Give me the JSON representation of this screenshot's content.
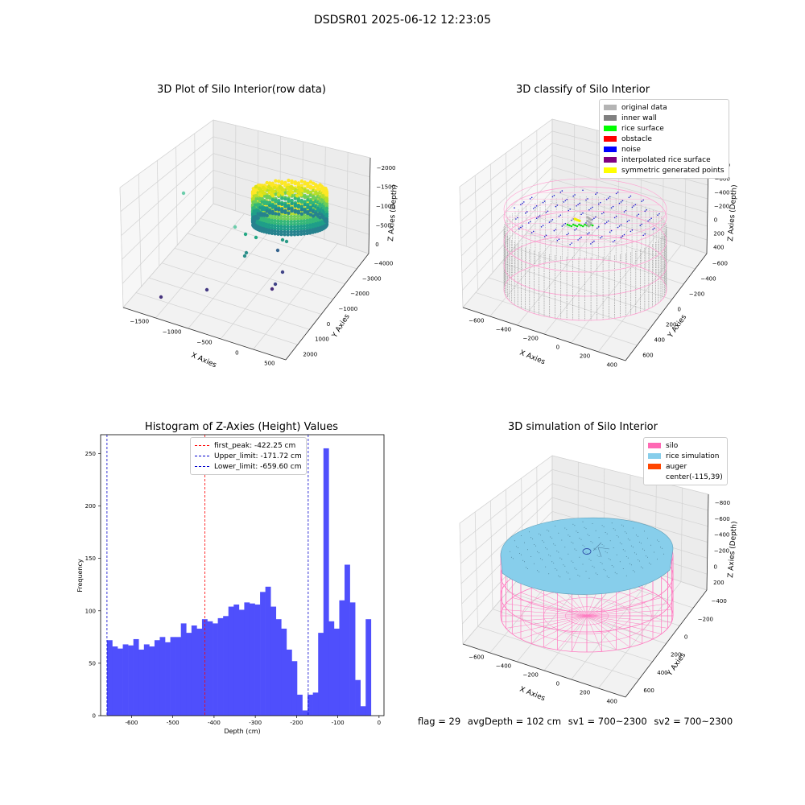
{
  "suptitle": "DSDSR01 2025-06-12 12:23:05",
  "panel1": {
    "title": "3D Plot of Silo Interior(row data)",
    "xlabel": "X Axies",
    "ylabel": "Y Axies",
    "zlabel": "Z Axies (Depth)",
    "xticks": [
      "−1500",
      "−1000",
      "−500",
      "0",
      "500"
    ],
    "yticks": [
      "2000",
      "1000",
      "0",
      "−1000",
      "−2000",
      "−3000",
      "−4000"
    ],
    "zticks": [
      "0",
      "−500",
      "−1000",
      "−1500",
      "−2000"
    ]
  },
  "panel2": {
    "title": "3D classify of Silo Interior",
    "xlabel": "X Axies",
    "ylabel": "Y Axies",
    "zlabel": "Z Axies (Depth)",
    "xticks": [
      "−600",
      "−400",
      "−200",
      "0",
      "200",
      "400"
    ],
    "yticks": [
      "600",
      "400",
      "200",
      "0",
      "−200",
      "−400",
      "−600"
    ],
    "zticks": [
      "400",
      "200",
      "0",
      "−200",
      "−400",
      "−600",
      "−800"
    ],
    "legend": [
      {
        "label": "original data",
        "color": "#b4b4b4"
      },
      {
        "label": "inner wall",
        "color": "#808080"
      },
      {
        "label": "rice surface",
        "color": "#00ff00"
      },
      {
        "label": "obstacle",
        "color": "#ff0000"
      },
      {
        "label": "noise",
        "color": "#0000ff"
      },
      {
        "label": "interpolated rice surface",
        "color": "#800080"
      },
      {
        "label": "symmetric generated points",
        "color": "#ffff00"
      }
    ]
  },
  "panel3": {
    "title": "Histogram of Z-Axies (Height) Values",
    "legend": [
      {
        "label": "first_peak: -422.25 cm",
        "color": "#ff0000"
      },
      {
        "label": "Upper_limit: -171.72 cm",
        "color": "#0000cc"
      },
      {
        "label": "Lower_limit: -659.60 cm",
        "color": "#0000cc"
      }
    ]
  },
  "panel4": {
    "title": "3D simulation of Silo Interior",
    "xlabel": "X Axies",
    "ylabel": "Y Axies",
    "zlabel": "Z Axies (Depth)",
    "xticks": [
      "−600",
      "−400",
      "−200",
      "0",
      "200",
      "400"
    ],
    "yticks": [
      "600",
      "400",
      "200",
      "0",
      "−200",
      "−400"
    ],
    "zticks": [
      "200",
      "0",
      "−200",
      "−400",
      "−600",
      "−800"
    ],
    "legend": [
      {
        "label": "silo",
        "color": "#ff69b4"
      },
      {
        "label": "rice simulation",
        "color": "#87ceeb"
      },
      {
        "label": "auger",
        "color": "#ff4500"
      },
      {
        "label": "center(-115,39)",
        "color": ""
      }
    ]
  },
  "status": {
    "flag": "flag = 29",
    "avg": "avgDepth = 102 cm",
    "sv1": "sv1 = 700~2300",
    "sv2": "sv2 = 700~2300"
  },
  "chart_data": {
    "type": "bar",
    "title": "Histogram of Z-Axies (Height) Values",
    "xlabel": "Depth (cm)",
    "ylabel": "Frequency",
    "xlim": [
      -675,
      12
    ],
    "ylim": [
      0,
      268
    ],
    "xticks": [
      -600,
      -500,
      -400,
      -300,
      -200,
      -100,
      0
    ],
    "yticks": [
      0,
      50,
      100,
      150,
      200,
      250
    ],
    "bin_start": -659.6,
    "bin_width": 12.8,
    "values": [
      72,
      66,
      64,
      68,
      67,
      73,
      63,
      68,
      66,
      72,
      75,
      70,
      75,
      75,
      88,
      79,
      86,
      83,
      92,
      90,
      88,
      93,
      95,
      104,
      106,
      101,
      108,
      107,
      106,
      118,
      123,
      104,
      92,
      83,
      63,
      52,
      20,
      5,
      20,
      22,
      79,
      255,
      90,
      83,
      110,
      144,
      108,
      34,
      9,
      92
    ],
    "vlines": [
      {
        "x": -422.25,
        "color": "#ff0000"
      },
      {
        "x": -171.72,
        "color": "#0000cc"
      },
      {
        "x": -659.6,
        "color": "#0000cc"
      }
    ],
    "bar_color": "#4f4ffc",
    "grid": false,
    "legend_position": "upper-center"
  }
}
